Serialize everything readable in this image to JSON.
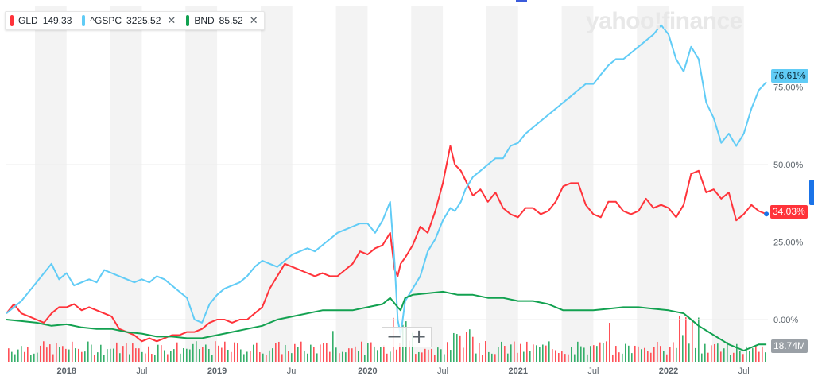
{
  "header": {
    "legend": [
      {
        "symbol": "GLD",
        "value": "149.33",
        "color": "#ff333a"
      },
      {
        "symbol": "^GSPC",
        "value": "3225.52",
        "color": "#61ccf6"
      },
      {
        "symbol": "BND",
        "value": "85.52",
        "color": "#12a150"
      }
    ],
    "close_glyph": "✕",
    "watermark": "yahoo!finance"
  },
  "controls": {
    "zoom_out": "−",
    "zoom_in": "+"
  },
  "tags": {
    "gspc": "76.61%",
    "gld": "34.03%",
    "volume": "18.74M"
  },
  "colors": {
    "gld": "#ff333a",
    "gspc": "#61ccf6",
    "bnd": "#12a150",
    "volume_up": "#12a150",
    "volume_down": "#ff333a"
  },
  "chart_data": {
    "type": "line",
    "x_ticks": [
      "2018",
      "Jul",
      "2019",
      "Jul",
      "2020",
      "Jul",
      "2021",
      "Jul",
      "2022",
      "Jul"
    ],
    "y_ticks": [
      "75.00%",
      "50.00%",
      "25.00%",
      "0.00%"
    ],
    "y_tick_values": [
      75,
      50,
      25,
      0
    ],
    "ylim": [
      -14,
      98
    ],
    "xlim": [
      2017.6,
      2022.66
    ],
    "series": [
      {
        "name": "GLD",
        "color": "#ff333a",
        "x": [
          2017.6,
          2017.65,
          2017.7,
          2017.75,
          2017.8,
          2017.85,
          2017.9,
          2017.95,
          2018.0,
          2018.05,
          2018.1,
          2018.15,
          2018.2,
          2018.25,
          2018.3,
          2018.35,
          2018.4,
          2018.45,
          2018.5,
          2018.55,
          2018.6,
          2018.65,
          2018.7,
          2018.75,
          2018.8,
          2018.85,
          2018.9,
          2018.95,
          2019.0,
          2019.05,
          2019.1,
          2019.15,
          2019.2,
          2019.25,
          2019.3,
          2019.35,
          2019.4,
          2019.45,
          2019.5,
          2019.55,
          2019.6,
          2019.65,
          2019.7,
          2019.75,
          2019.8,
          2019.85,
          2019.9,
          2019.95,
          2020.0,
          2020.05,
          2020.1,
          2020.15,
          2020.18,
          2020.2,
          2020.22,
          2020.25,
          2020.3,
          2020.35,
          2020.4,
          2020.45,
          2020.5,
          2020.55,
          2020.58,
          2020.62,
          2020.65,
          2020.7,
          2020.75,
          2020.8,
          2020.85,
          2020.9,
          2020.95,
          2021.0,
          2021.05,
          2021.1,
          2021.15,
          2021.2,
          2021.25,
          2021.3,
          2021.35,
          2021.4,
          2021.45,
          2021.5,
          2021.55,
          2021.6,
          2021.65,
          2021.7,
          2021.75,
          2021.8,
          2021.85,
          2021.9,
          2021.95,
          2022.0,
          2022.05,
          2022.1,
          2022.15,
          2022.2,
          2022.25,
          2022.3,
          2022.35,
          2022.4,
          2022.45,
          2022.5,
          2022.55,
          2022.6,
          2022.65
        ],
        "y": [
          2,
          5,
          2,
          1,
          0,
          -1,
          2,
          4,
          4,
          5,
          3,
          4,
          3,
          2,
          1,
          -3,
          -4,
          -5,
          -7,
          -6,
          -7,
          -6,
          -5,
          -5,
          -4,
          -4,
          -3,
          -1,
          0,
          0,
          -1,
          0,
          0,
          2,
          4,
          10,
          14,
          18,
          17,
          16,
          15,
          14,
          15,
          14,
          14,
          16,
          18,
          22,
          21,
          23,
          24,
          28,
          16,
          14,
          18,
          20,
          24,
          30,
          28,
          35,
          44,
          56,
          50,
          48,
          45,
          40,
          42,
          38,
          41,
          36,
          34,
          33,
          36,
          36,
          34,
          35,
          38,
          43,
          44,
          44,
          37,
          34,
          33,
          38,
          38,
          35,
          34,
          35,
          39,
          36,
          37,
          36,
          33,
          37,
          47,
          48,
          41,
          42,
          39,
          41,
          32,
          34,
          37,
          35,
          34.03
        ]
      },
      {
        "name": "^GSPC",
        "color": "#61ccf6",
        "x": [
          2017.6,
          2017.65,
          2017.7,
          2017.75,
          2017.8,
          2017.85,
          2017.9,
          2017.95,
          2018.0,
          2018.05,
          2018.1,
          2018.15,
          2018.2,
          2018.25,
          2018.3,
          2018.35,
          2018.4,
          2018.45,
          2018.5,
          2018.55,
          2018.6,
          2018.65,
          2018.7,
          2018.75,
          2018.8,
          2018.85,
          2018.9,
          2018.95,
          2019.0,
          2019.05,
          2019.1,
          2019.15,
          2019.2,
          2019.25,
          2019.3,
          2019.35,
          2019.4,
          2019.45,
          2019.5,
          2019.55,
          2019.6,
          2019.65,
          2019.7,
          2019.75,
          2019.8,
          2019.85,
          2019.9,
          2019.95,
          2020.0,
          2020.05,
          2020.1,
          2020.15,
          2020.18,
          2020.2,
          2020.22,
          2020.25,
          2020.3,
          2020.35,
          2020.4,
          2020.45,
          2020.5,
          2020.55,
          2020.58,
          2020.62,
          2020.65,
          2020.7,
          2020.75,
          2020.8,
          2020.85,
          2020.9,
          2020.95,
          2021.0,
          2021.05,
          2021.1,
          2021.15,
          2021.2,
          2021.25,
          2021.3,
          2021.35,
          2021.4,
          2021.45,
          2021.5,
          2021.55,
          2021.6,
          2021.65,
          2021.7,
          2021.75,
          2021.8,
          2021.85,
          2021.9,
          2021.95,
          2022.0,
          2022.05,
          2022.1,
          2022.15,
          2022.2,
          2022.25,
          2022.3,
          2022.35,
          2022.4,
          2022.45,
          2022.5,
          2022.55,
          2022.6,
          2022.65
        ],
        "y": [
          2,
          4,
          6,
          9,
          12,
          15,
          18,
          13,
          15,
          11,
          12,
          13,
          12,
          16,
          15,
          14,
          13,
          12,
          13,
          12,
          14,
          13,
          11,
          9,
          7,
          0,
          -1,
          5,
          8,
          10,
          11,
          12,
          14,
          17,
          19,
          18,
          17,
          19,
          21,
          22,
          23,
          22,
          24,
          26,
          28,
          29,
          30,
          31,
          31,
          28,
          32,
          38,
          18,
          0,
          -5,
          6,
          10,
          14,
          22,
          26,
          32,
          36,
          35,
          38,
          42,
          46,
          48,
          50,
          52,
          52,
          56,
          57,
          60,
          62,
          64,
          66,
          68,
          70,
          72,
          74,
          76,
          76,
          79,
          82,
          84,
          84,
          86,
          88,
          90,
          92,
          95,
          92,
          84,
          80,
          88,
          84,
          70,
          65,
          57,
          60,
          56,
          60,
          68,
          74,
          76.61
        ]
      },
      {
        "name": "BND",
        "color": "#12a150",
        "x": [
          2017.6,
          2017.7,
          2017.8,
          2017.9,
          2018.0,
          2018.1,
          2018.2,
          2018.3,
          2018.4,
          2018.5,
          2018.6,
          2018.7,
          2018.8,
          2018.9,
          2019.0,
          2019.1,
          2019.2,
          2019.3,
          2019.4,
          2019.5,
          2019.6,
          2019.7,
          2019.8,
          2019.9,
          2020.0,
          2020.1,
          2020.15,
          2020.2,
          2020.22,
          2020.25,
          2020.3,
          2020.4,
          2020.5,
          2020.6,
          2020.7,
          2020.8,
          2020.9,
          2021.0,
          2021.1,
          2021.2,
          2021.3,
          2021.4,
          2021.5,
          2021.6,
          2021.7,
          2021.8,
          2021.9,
          2022.0,
          2022.1,
          2022.2,
          2022.3,
          2022.4,
          2022.5,
          2022.6,
          2022.65
        ],
        "y": [
          0,
          -0.5,
          -1,
          -2,
          -1.5,
          -2.5,
          -3,
          -3,
          -4,
          -4.5,
          -5.5,
          -5.5,
          -6,
          -6,
          -5,
          -4,
          -3,
          -2,
          0,
          1,
          2,
          3,
          3,
          3,
          4,
          5,
          7,
          4,
          3,
          7,
          8,
          8.5,
          9,
          8,
          8,
          7,
          7,
          6,
          6,
          5,
          3,
          3,
          3,
          3.5,
          4,
          4,
          3.5,
          3,
          2,
          -2,
          -5,
          -8,
          -10,
          -8,
          -8
        ]
      }
    ],
    "volume_label": "18.74M"
  }
}
